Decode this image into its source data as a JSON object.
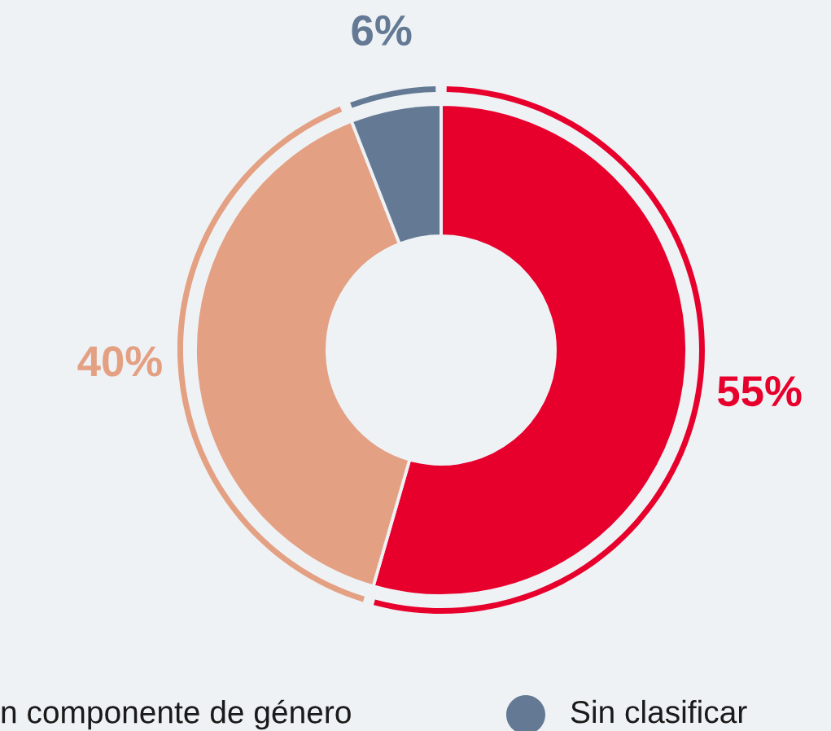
{
  "chart_data": {
    "type": "donut",
    "categories": [
      null,
      "n componente de género",
      "Sin clasificar"
    ],
    "colors": [
      "#e8002d",
      "#e4a082",
      "#647a94"
    ],
    "series": [
      {
        "values": [
          55,
          40,
          6
        ],
        "value_labels": [
          "55%",
          "40%",
          "6%"
        ]
      },
      {
        "values": [
          55,
          40,
          6
        ]
      }
    ],
    "legend": "bottom"
  }
}
